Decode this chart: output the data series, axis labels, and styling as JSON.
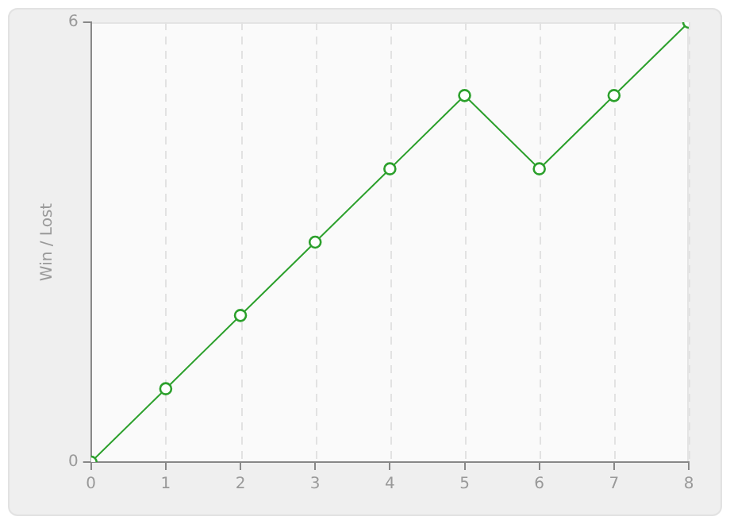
{
  "chart_data": {
    "type": "line",
    "ylabel": "Win / Lost",
    "x": [
      0,
      1,
      2,
      3,
      4,
      5,
      6,
      7,
      8
    ],
    "series": [
      {
        "color": "#2ca02c",
        "values": [
          0,
          1,
          2,
          3,
          4,
          5,
          4,
          5,
          6
        ]
      }
    ],
    "xlim": [
      0,
      8
    ],
    "xticks": [
      0,
      1,
      2,
      3,
      4,
      5,
      6,
      7,
      8
    ],
    "ylim": [
      0,
      6
    ],
    "yticks": [
      0,
      6
    ],
    "grid": "x",
    "legend": false,
    "marker": "circle",
    "line_style": "solid"
  }
}
